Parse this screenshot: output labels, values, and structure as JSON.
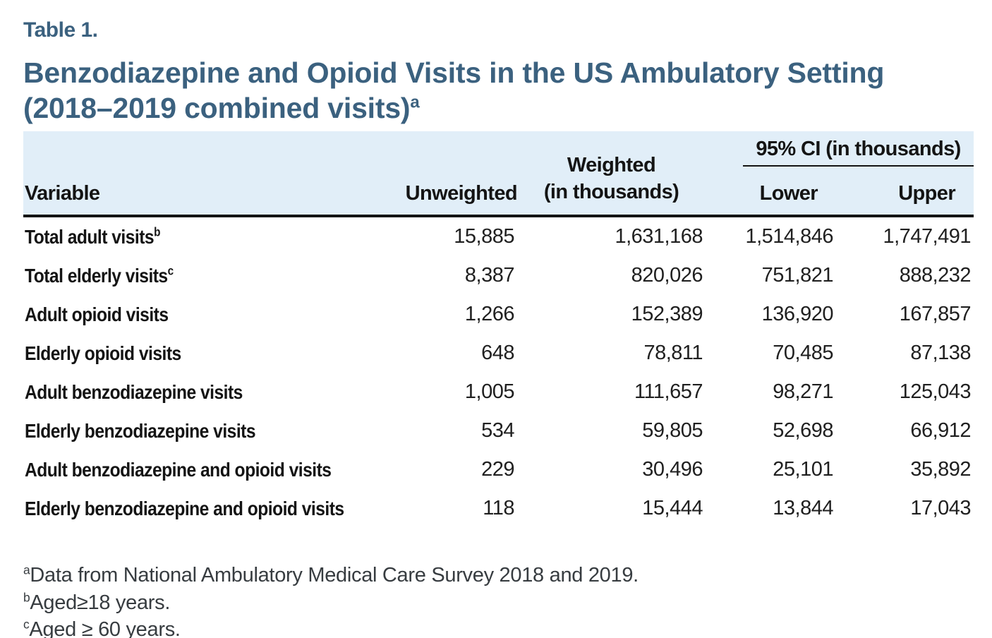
{
  "label": "Table 1.",
  "title_line1": "Benzodiazepine and Opioid Visits in the US Ambulatory Setting",
  "title_line2": "(2018–2019 combined visits)",
  "title_sup": "a",
  "colors": {
    "title_blue": "#3b617f",
    "header_band_bg": "#e1eef8",
    "header_rule_black": "#141414",
    "bottom_rule_slate": "#4f6678"
  },
  "table": {
    "headers": {
      "variable": "Variable",
      "unweighted": "Unweighted",
      "weighted_line1": "Weighted",
      "weighted_line2": "(in thousands)",
      "ci_group": "95% CI (in thousands)",
      "lower": "Lower",
      "upper": "Upper"
    },
    "rows": [
      {
        "variable": "Total adult visits",
        "sup": "b",
        "unweighted": "15,885",
        "weighted": "1,631,168",
        "lower": "1,514,846",
        "upper": "1,747,491"
      },
      {
        "variable": "Total elderly visits",
        "sup": "c",
        "unweighted": "8,387",
        "weighted": "820,026",
        "lower": "751,821",
        "upper": "888,232"
      },
      {
        "variable": "Adult opioid visits",
        "sup": "",
        "unweighted": "1,266",
        "weighted": "152,389",
        "lower": "136,920",
        "upper": "167,857"
      },
      {
        "variable": "Elderly opioid visits",
        "sup": "",
        "unweighted": "648",
        "weighted": "78,811",
        "lower": "70,485",
        "upper": "87,138"
      },
      {
        "variable": "Adult benzodiazepine visits",
        "sup": "",
        "unweighted": "1,005",
        "weighted": "111,657",
        "lower": "98,271",
        "upper": "125,043"
      },
      {
        "variable": "Elderly benzodiazepine visits",
        "sup": "",
        "unweighted": "534",
        "weighted": "59,805",
        "lower": "52,698",
        "upper": "66,912"
      },
      {
        "variable": "Adult benzodiazepine and opioid visits",
        "sup": "",
        "unweighted": "229",
        "weighted": "30,496",
        "lower": "25,101",
        "upper": "35,892"
      },
      {
        "variable": "Elderly benzodiazepine and opioid visits",
        "sup": "",
        "unweighted": "118",
        "weighted": "15,444",
        "lower": "13,844",
        "upper": "17,043"
      }
    ]
  },
  "footnotes": [
    {
      "sup": "a",
      "text": "Data from National Ambulatory Medical Care Survey 2018 and 2019."
    },
    {
      "sup": "b",
      "text": "Aged≥18 years."
    },
    {
      "sup": "c",
      "text": "Aged ≥ 60 years."
    }
  ]
}
